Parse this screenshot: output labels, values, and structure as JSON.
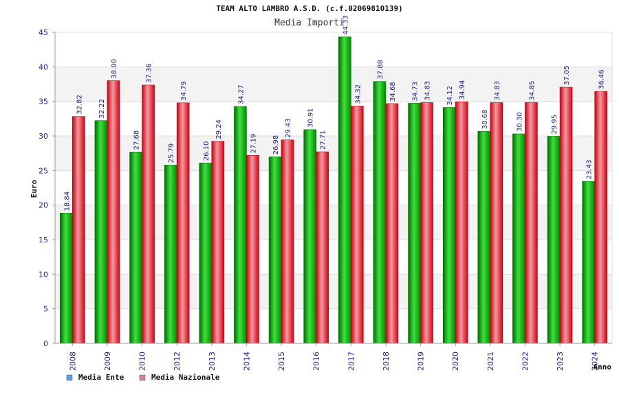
{
  "chart_data": {
    "type": "bar",
    "title": "TEAM ALTO LAMBRO A.S.D. (c.f.02069810139)",
    "subtitle": "Media Importi",
    "xlabel": "Anno",
    "ylabel": "Euro",
    "ylim": [
      0,
      45
    ],
    "yticks": [
      0,
      5,
      10,
      15,
      20,
      25,
      30,
      35,
      40,
      45
    ],
    "grid": true,
    "legend_position": "bottom-left",
    "categories": [
      "2008",
      "2009",
      "2010",
      "2012",
      "2013",
      "2014",
      "2015",
      "2016",
      "2017",
      "2018",
      "2019",
      "2020",
      "2021",
      "2022",
      "2023",
      "2024"
    ],
    "series": [
      {
        "name": "Media Ente",
        "color": "#00a000",
        "legend_color": "#5aa0e6",
        "values": [
          18.84,
          32.22,
          27.68,
          25.79,
          26.1,
          34.27,
          26.98,
          30.91,
          44.33,
          37.88,
          34.73,
          34.12,
          30.68,
          30.3,
          29.95,
          23.43
        ],
        "labels": [
          "18.84",
          "32.22",
          "27.68",
          "25.79",
          "26.10",
          "34.27",
          "26.98",
          "30.91",
          "44.33",
          "37.88",
          "34.73",
          "34.12",
          "30.68",
          "30.30",
          "29.95",
          "23.43"
        ]
      },
      {
        "name": "Media Nazionale",
        "color": "#e0101a",
        "legend_color": "#d980a8",
        "values": [
          32.82,
          38.0,
          37.36,
          34.79,
          29.24,
          27.19,
          29.43,
          27.71,
          34.32,
          34.68,
          34.83,
          34.94,
          34.83,
          34.85,
          37.05,
          36.46
        ],
        "labels": [
          "32.82",
          "38.00",
          "37.36",
          "34.79",
          "29.24",
          "27.19",
          "29.43",
          "27.71",
          "34.32",
          "34.68",
          "34.83",
          "34.94",
          "34.83",
          "34.85",
          "37.05",
          "36.46"
        ]
      }
    ]
  }
}
